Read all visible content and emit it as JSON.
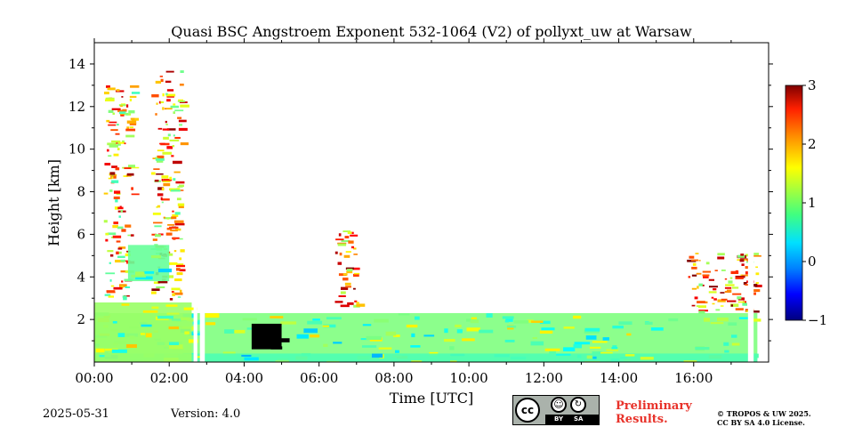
{
  "chart_data": {
    "type": "heatmap",
    "title": "Quasi BSC Angstroem Exponent 532-1064 (V2) of pollyxt_uw at Warsaw",
    "xlabel": "Time [UTC]",
    "ylabel": "Height [km]",
    "xlim": [
      "00:00",
      "18:00"
    ],
    "ylim": [
      0,
      15
    ],
    "x_ticks": [
      "00:00",
      "02:00",
      "04:00",
      "06:00",
      "08:00",
      "10:00",
      "12:00",
      "14:00",
      "16:00"
    ],
    "y_ticks": [
      "2",
      "4",
      "6",
      "8",
      "10",
      "12",
      "14"
    ],
    "colorbar": {
      "ticks": [
        "−1",
        "0",
        "1",
        "2",
        "3"
      ],
      "range": [
        -1,
        3
      ],
      "colormap": "jet"
    },
    "regions": [
      {
        "name": "boundary-layer",
        "time_start": 0.0,
        "time_end": 17.7,
        "height_top_km": 2.3,
        "value": 1.0
      },
      {
        "name": "near-ground-layer",
        "time_start": 0.0,
        "time_end": 17.7,
        "height_top_km": 0.4,
        "value": 0.8
      },
      {
        "name": "early-dense-layer",
        "time_start": 0.0,
        "time_end": 2.6,
        "height_top_km": 2.8,
        "value": 1.1
      },
      {
        "name": "residual-cloud-1",
        "time_start": 0.25,
        "time_end": 1.0,
        "height_bottom_km": 3.0,
        "height_top_km": 13.0,
        "value": 1.8
      },
      {
        "name": "residual-cloud-2",
        "time_start": 1.5,
        "time_end": 2.3,
        "height_bottom_km": 3.0,
        "height_top_km": 13.8,
        "value": 1.9
      },
      {
        "name": "dust-patch",
        "time_start": 0.9,
        "time_end": 2.0,
        "height_bottom_km": 3.8,
        "height_top_km": 5.5,
        "value": 0.9
      },
      {
        "name": "black-feature",
        "time_start": 4.2,
        "time_end": 5.0,
        "height_bottom_km": 0.6,
        "height_top_km": 1.8,
        "value": -1.5
      },
      {
        "name": "plume-0630",
        "time_start": 6.4,
        "time_end": 7.0,
        "height_bottom_km": 2.6,
        "height_top_km": 6.3,
        "value": 2.1
      },
      {
        "name": "evening-layer",
        "time_start": 15.8,
        "time_end": 17.7,
        "height_bottom_km": 2.4,
        "height_top_km": 5.2,
        "value": 2.0
      }
    ],
    "data_gaps": [
      {
        "time_start": 2.65,
        "time_end": 2.75
      },
      {
        "time_start": 2.82,
        "time_end": 2.95
      },
      {
        "time_start": 17.45,
        "time_end": 17.6
      }
    ]
  },
  "footer": {
    "date": "2025-05-31",
    "version": "Version: 4.0",
    "preliminary_line1": "Preliminary",
    "preliminary_line2": "Results.",
    "copyright_line1": "© TROPOS & UW 2025.",
    "copyright_line2": "CC BY SA 4.0 License.",
    "cc_badge": {
      "circle": "cc",
      "left_label": "BY",
      "right_label": "SA",
      "icons": [
        "person-icon",
        "share-alike-icon"
      ]
    }
  },
  "colors": {
    "preliminary": "#e8322a",
    "badge_bg": "#aab2ab"
  }
}
